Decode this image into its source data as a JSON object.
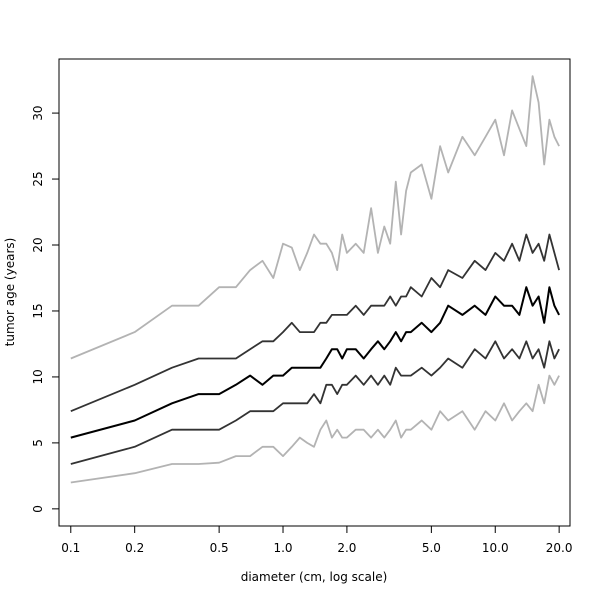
{
  "chart_data": {
    "type": "line",
    "xlabel": "diameter (cm, log scale)",
    "ylabel": "tumor age (years)",
    "x_scale": "log",
    "xlim": [
      0.088,
      22.5
    ],
    "ylim": [
      -1.3,
      34.1
    ],
    "x_ticks": [
      0.1,
      0.2,
      0.5,
      1.0,
      2.0,
      5.0,
      10.0,
      20.0
    ],
    "x_tick_labels": [
      "0.1",
      "0.2",
      "0.5",
      "1.0",
      "2.0",
      "5.0",
      "10.0",
      "20.0"
    ],
    "y_ticks": [
      0,
      5,
      10,
      15,
      20,
      25,
      30
    ],
    "y_tick_labels": [
      "0",
      "5",
      "10",
      "15",
      "20",
      "25",
      "30"
    ],
    "grid": false,
    "legend": "none",
    "colors": {
      "outer": "#b3b3b3",
      "inner": "#333333",
      "median": "#000000"
    },
    "series": [
      {
        "role": "outer",
        "x": [
          0.1,
          0.2,
          0.3,
          0.4,
          0.5,
          0.6,
          0.7,
          0.8,
          0.9,
          1.0,
          1.1,
          1.2,
          1.3,
          1.4,
          1.5,
          1.6,
          1.7,
          1.8,
          1.9,
          2.0,
          2.2,
          2.4,
          2.6,
          2.8,
          3.0,
          3.2,
          3.4,
          3.6,
          3.8,
          4.0,
          4.5,
          5.0,
          5.5,
          6.0,
          7.0,
          8.0,
          9.0,
          10.0,
          11.0,
          12.0,
          13.0,
          14.0,
          15.0,
          16.0,
          17.0,
          18.0,
          19.0,
          20.0
        ],
        "y": [
          11.4,
          13.4,
          15.4,
          15.4,
          16.8,
          16.8,
          18.1,
          18.8,
          17.5,
          20.1,
          19.8,
          18.1,
          19.4,
          20.8,
          20.1,
          20.1,
          19.4,
          18.1,
          20.8,
          19.4,
          20.1,
          19.4,
          22.8,
          19.4,
          21.4,
          20.1,
          24.8,
          20.8,
          24.1,
          25.5,
          26.1,
          23.5,
          27.5,
          25.5,
          28.2,
          26.8,
          28.2,
          29.5,
          26.8,
          30.2,
          28.8,
          27.5,
          32.8,
          30.8,
          26.1,
          29.5,
          28.2,
          27.5
        ]
      },
      {
        "role": "inner",
        "x": [
          0.1,
          0.2,
          0.3,
          0.4,
          0.5,
          0.6,
          0.7,
          0.8,
          0.9,
          1.0,
          1.1,
          1.2,
          1.3,
          1.4,
          1.5,
          1.6,
          1.7,
          1.8,
          1.9,
          2.0,
          2.2,
          2.4,
          2.6,
          2.8,
          3.0,
          3.2,
          3.4,
          3.6,
          3.8,
          4.0,
          4.5,
          5.0,
          5.5,
          6.0,
          7.0,
          8.0,
          9.0,
          10.0,
          11.0,
          12.0,
          13.0,
          14.0,
          15.0,
          16.0,
          17.0,
          18.0,
          19.0,
          20.0
        ],
        "y": [
          7.4,
          9.4,
          10.7,
          11.4,
          11.4,
          11.4,
          12.1,
          12.7,
          12.7,
          13.4,
          14.1,
          13.4,
          13.4,
          13.4,
          14.1,
          14.1,
          14.7,
          14.7,
          14.7,
          14.7,
          15.4,
          14.7,
          15.4,
          15.4,
          15.4,
          16.1,
          15.4,
          16.1,
          16.1,
          16.8,
          16.1,
          17.5,
          16.8,
          18.1,
          17.5,
          18.8,
          18.1,
          19.4,
          18.8,
          20.1,
          18.8,
          20.8,
          19.4,
          20.1,
          18.8,
          20.8,
          19.4,
          18.1
        ]
      },
      {
        "role": "median",
        "x": [
          0.1,
          0.2,
          0.3,
          0.4,
          0.5,
          0.6,
          0.7,
          0.8,
          0.9,
          1.0,
          1.1,
          1.2,
          1.3,
          1.4,
          1.5,
          1.6,
          1.7,
          1.8,
          1.9,
          2.0,
          2.2,
          2.4,
          2.6,
          2.8,
          3.0,
          3.2,
          3.4,
          3.6,
          3.8,
          4.0,
          4.5,
          5.0,
          5.5,
          6.0,
          7.0,
          8.0,
          9.0,
          10.0,
          11.0,
          12.0,
          13.0,
          14.0,
          15.0,
          16.0,
          17.0,
          18.0,
          19.0,
          20.0
        ],
        "y": [
          5.4,
          6.7,
          8.0,
          8.7,
          8.7,
          9.4,
          10.1,
          9.4,
          10.1,
          10.1,
          10.7,
          10.7,
          10.7,
          10.7,
          10.7,
          11.4,
          12.1,
          12.1,
          11.4,
          12.1,
          12.1,
          11.4,
          12.1,
          12.7,
          12.1,
          12.7,
          13.4,
          12.7,
          13.4,
          13.4,
          14.1,
          13.4,
          14.1,
          15.4,
          14.7,
          15.4,
          14.7,
          16.1,
          15.4,
          15.4,
          14.7,
          16.8,
          15.4,
          16.1,
          14.1,
          16.8,
          15.4,
          14.7
        ]
      },
      {
        "role": "inner",
        "x": [
          0.1,
          0.2,
          0.3,
          0.4,
          0.5,
          0.6,
          0.7,
          0.8,
          0.9,
          1.0,
          1.1,
          1.2,
          1.3,
          1.4,
          1.5,
          1.6,
          1.7,
          1.8,
          1.9,
          2.0,
          2.2,
          2.4,
          2.6,
          2.8,
          3.0,
          3.2,
          3.4,
          3.6,
          3.8,
          4.0,
          4.5,
          5.0,
          5.5,
          6.0,
          7.0,
          8.0,
          9.0,
          10.0,
          11.0,
          12.0,
          13.0,
          14.0,
          15.0,
          16.0,
          17.0,
          18.0,
          19.0,
          20.0
        ],
        "y": [
          3.4,
          4.7,
          6.0,
          6.0,
          6.0,
          6.7,
          7.4,
          7.4,
          7.4,
          8.0,
          8.0,
          8.0,
          8.0,
          8.7,
          8.0,
          9.4,
          9.4,
          8.7,
          9.4,
          9.4,
          10.1,
          9.4,
          10.1,
          9.4,
          10.1,
          9.4,
          10.7,
          10.1,
          10.1,
          10.1,
          10.7,
          10.1,
          10.7,
          11.4,
          10.7,
          12.1,
          11.4,
          12.7,
          11.4,
          12.1,
          11.4,
          12.7,
          11.4,
          12.1,
          10.7,
          12.7,
          11.4,
          12.1
        ]
      },
      {
        "role": "outer",
        "x": [
          0.1,
          0.2,
          0.3,
          0.4,
          0.5,
          0.6,
          0.7,
          0.8,
          0.9,
          1.0,
          1.1,
          1.2,
          1.3,
          1.4,
          1.5,
          1.6,
          1.7,
          1.8,
          1.9,
          2.0,
          2.2,
          2.4,
          2.6,
          2.8,
          3.0,
          3.2,
          3.4,
          3.6,
          3.8,
          4.0,
          4.5,
          5.0,
          5.5,
          6.0,
          7.0,
          8.0,
          9.0,
          10.0,
          11.0,
          12.0,
          13.0,
          14.0,
          15.0,
          16.0,
          17.0,
          18.0,
          19.0,
          20.0
        ],
        "y": [
          2.0,
          2.7,
          3.4,
          3.4,
          3.5,
          4.0,
          4.0,
          4.7,
          4.7,
          4.0,
          4.7,
          5.4,
          5.0,
          4.7,
          6.0,
          6.7,
          5.4,
          6.0,
          5.4,
          5.4,
          6.0,
          6.0,
          5.4,
          6.0,
          5.4,
          6.0,
          6.7,
          5.4,
          6.0,
          6.0,
          6.7,
          6.0,
          7.4,
          6.7,
          7.4,
          6.0,
          7.4,
          6.7,
          8.0,
          6.7,
          7.4,
          8.0,
          7.4,
          9.4,
          8.0,
          10.1,
          9.4,
          10.1
        ]
      }
    ]
  }
}
